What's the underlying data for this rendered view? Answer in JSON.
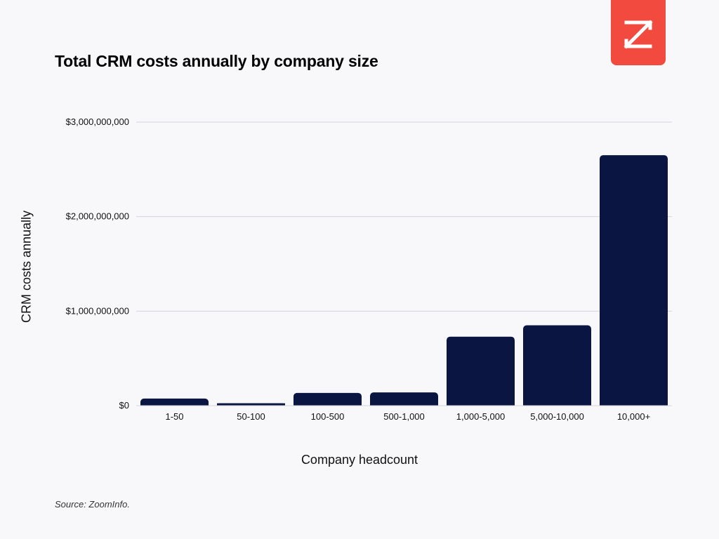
{
  "logo": {
    "icon": "zoominfo-z-logo-icon",
    "color": "#f24a3e"
  },
  "source": "Source: ZoomInfo.",
  "colors": {
    "bar": "#0a1541",
    "grid": "#d4d4dc",
    "background": "#f8f8fa"
  },
  "chart_data": {
    "type": "bar",
    "title": "Total CRM costs annually by company size",
    "xlabel": "Company headcount",
    "ylabel": "CRM costs annually",
    "categories": [
      "1-50",
      "50-100",
      "100-500",
      "500-1,000",
      "1,000-5,000",
      "5,000-10,000",
      "10,000+"
    ],
    "values": [
      75000000,
      25000000,
      135000000,
      140000000,
      730000000,
      850000000,
      2650000000
    ],
    "ylim": [
      0,
      3000000000
    ],
    "yticks": [
      0,
      1000000000,
      2000000000,
      3000000000
    ],
    "ytick_labels": [
      "$0",
      "$1,000,000,000",
      "$2,000,000,000",
      "$3,000,000,000"
    ],
    "grid": true,
    "legend": "none"
  }
}
